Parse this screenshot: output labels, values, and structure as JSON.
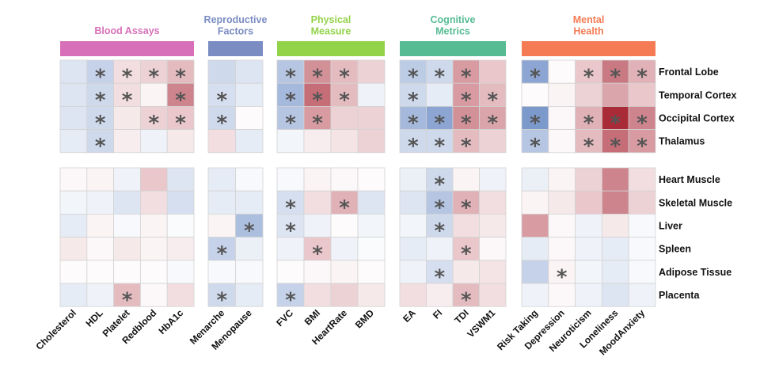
{
  "chart_data": {
    "type": "heatmap",
    "colors": {
      "negative": "#5b7fbf",
      "positive": "#a5202e",
      "neutral": "#ffffff",
      "cell_border": "#d3d3d3",
      "star": "#555555"
    },
    "value_range": [
      -1,
      1
    ],
    "groups": [
      {
        "title": "Blood Assays",
        "color": "#d770b8",
        "columns": [
          "Cholesterol",
          "HDL",
          "Platelet",
          "Redblood",
          "HbA1c"
        ]
      },
      {
        "title": "Reproductive Factors",
        "title_lines": [
          "Reproductive",
          "Factors"
        ],
        "color": "#7a8cc2",
        "columns": [
          "Menarche",
          "Menopause"
        ]
      },
      {
        "title": "Physical Measure",
        "title_lines": [
          "Physical",
          "Measure"
        ],
        "color": "#93d34a",
        "columns": [
          "FVC",
          "BMI",
          "HeartRate",
          "BMD"
        ]
      },
      {
        "title": "Cognitive Metrics",
        "title_lines": [
          "Cognitive",
          "Metrics"
        ],
        "color": "#56bb93",
        "columns": [
          "EA",
          "FI",
          "TDI",
          "VSWM1"
        ]
      },
      {
        "title": "Mental Health",
        "title_lines": [
          "Mental",
          "Health"
        ],
        "color": "#f47b54",
        "columns": [
          "Risk Taking",
          "Depression",
          "Neuroticism",
          "Loneliness",
          "MoodAnxiety"
        ]
      }
    ],
    "row_blocks": [
      {
        "rows": [
          "Frontal Lobe",
          "Temporal Cortex",
          "Occipital Cortex",
          "Thalamus"
        ]
      },
      {
        "rows": [
          "Heart Muscle",
          "Skeletal Muscle",
          "Liver",
          "Spleen",
          "Adipose Tissue",
          "Placenta"
        ]
      }
    ],
    "values": [
      [
        [
          -0.2,
          -0.35,
          0.15,
          0.2,
          0.3,
          -0.3,
          -0.2,
          -0.45,
          0.5,
          0.3,
          0.2,
          -0.4,
          -0.3,
          0.45,
          0.25,
          -0.7,
          0.02,
          0.25,
          0.6,
          0.35
        ],
        [
          -0.2,
          -0.3,
          0.15,
          0.05,
          0.55,
          -0.25,
          -0.15,
          -0.55,
          0.65,
          0.3,
          -0.1,
          -0.3,
          -0.15,
          0.45,
          0.3,
          0.02,
          0.05,
          0.2,
          0.4,
          0.25
        ],
        [
          -0.2,
          -0.3,
          0.1,
          0.2,
          0.25,
          -0.3,
          0.02,
          -0.45,
          0.45,
          0.2,
          0.2,
          -0.55,
          -0.7,
          0.5,
          0.4,
          -0.8,
          0.03,
          0.35,
          0.95,
          0.55
        ],
        [
          -0.15,
          -0.3,
          0.08,
          -0.1,
          0.1,
          0.15,
          -0.15,
          -0.08,
          0.08,
          0.12,
          0.2,
          -0.3,
          -0.3,
          0.3,
          0.2,
          -0.45,
          0.03,
          0.3,
          0.65,
          0.45
        ]
      ],
      [
        [
          0.03,
          0.05,
          -0.1,
          0.25,
          -0.2,
          -0.15,
          -0.05,
          -0.05,
          0.05,
          0.03,
          0.02,
          -0.12,
          -0.3,
          0.05,
          -0.1,
          -0.12,
          0.05,
          0.2,
          0.55,
          0.15
        ],
        [
          -0.08,
          -0.1,
          -0.2,
          0.15,
          -0.25,
          -0.15,
          -0.15,
          -0.25,
          0.15,
          0.35,
          -0.2,
          -0.2,
          -0.45,
          0.35,
          0.15,
          0.05,
          0.1,
          0.25,
          0.55,
          0.2
        ],
        [
          -0.15,
          0.05,
          -0.05,
          0.05,
          -0.03,
          0.05,
          -0.5,
          -0.2,
          -0.1,
          0.02,
          -0.08,
          -0.08,
          -0.3,
          0.15,
          0.1,
          0.45,
          0.03,
          -0.1,
          0.1,
          -0.05
        ],
        [
          0.1,
          0.03,
          0.1,
          0.05,
          0.08,
          -0.35,
          -0.12,
          -0.1,
          0.25,
          -0.1,
          -0.03,
          -0.15,
          -0.1,
          0.25,
          0.03,
          -0.15,
          0.03,
          -0.1,
          -0.15,
          -0.05
        ],
        [
          0.02,
          0.02,
          0.02,
          0.02,
          -0.05,
          -0.05,
          -0.05,
          0.02,
          0.03,
          0.05,
          0.02,
          -0.1,
          -0.25,
          0.1,
          0.12,
          -0.35,
          0.05,
          -0.08,
          -0.15,
          -0.05
        ],
        [
          -0.15,
          -0.1,
          0.3,
          0.03,
          0.15,
          -0.3,
          -0.15,
          -0.35,
          0.15,
          0.2,
          0.1,
          0.15,
          0.08,
          0.3,
          0.15,
          -0.1,
          0.03,
          -0.1,
          -0.2,
          -0.1
        ]
      ]
    ],
    "significance": [
      [
        [
          0,
          1,
          1,
          1,
          1,
          0,
          0,
          1,
          1,
          1,
          0,
          1,
          1,
          1,
          0,
          1,
          0,
          1,
          1,
          1
        ],
        [
          0,
          1,
          1,
          0,
          1,
          1,
          0,
          1,
          1,
          1,
          0,
          1,
          0,
          1,
          1,
          0,
          0,
          0,
          0,
          0
        ],
        [
          0,
          1,
          0,
          1,
          1,
          1,
          0,
          1,
          1,
          0,
          0,
          1,
          1,
          1,
          1,
          1,
          0,
          1,
          1,
          1
        ],
        [
          0,
          1,
          0,
          0,
          0,
          0,
          0,
          0,
          0,
          0,
          0,
          1,
          1,
          1,
          0,
          1,
          0,
          1,
          1,
          1
        ]
      ],
      [
        [
          0,
          0,
          0,
          0,
          0,
          0,
          0,
          0,
          0,
          0,
          0,
          0,
          1,
          0,
          0,
          0,
          0,
          0,
          0,
          0
        ],
        [
          0,
          0,
          0,
          0,
          0,
          0,
          0,
          1,
          0,
          1,
          0,
          0,
          1,
          1,
          0,
          0,
          0,
          0,
          0,
          0
        ],
        [
          0,
          0,
          0,
          0,
          0,
          0,
          1,
          1,
          0,
          0,
          0,
          0,
          1,
          0,
          0,
          0,
          0,
          0,
          0,
          0
        ],
        [
          0,
          0,
          0,
          0,
          0,
          1,
          0,
          0,
          1,
          0,
          0,
          0,
          0,
          1,
          0,
          0,
          0,
          0,
          0,
          0
        ],
        [
          0,
          0,
          0,
          0,
          0,
          0,
          0,
          0,
          0,
          0,
          0,
          0,
          1,
          0,
          0,
          0,
          1,
          0,
          0,
          0
        ],
        [
          0,
          0,
          1,
          0,
          0,
          1,
          0,
          1,
          0,
          0,
          0,
          0,
          0,
          1,
          0,
          0,
          0,
          0,
          0,
          0
        ]
      ]
    ],
    "star_symbol": "*"
  }
}
